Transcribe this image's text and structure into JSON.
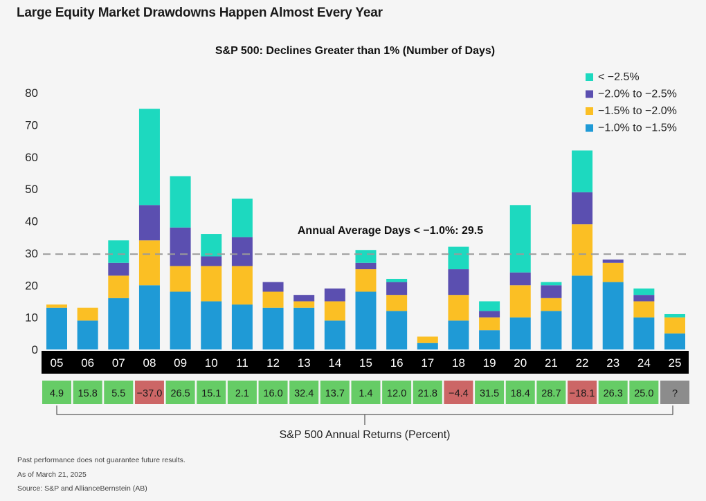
{
  "page": {
    "title": "Large Equity Market Drawdowns Happen Almost Every Year"
  },
  "chart_data": {
    "type": "bar",
    "stacked": true,
    "title": "S&P 500: Declines Greater than 1% (Number of Days)",
    "categories": [
      "05",
      "06",
      "07",
      "08",
      "09",
      "10",
      "11",
      "12",
      "13",
      "14",
      "15",
      "16",
      "17",
      "18",
      "19",
      "20",
      "21",
      "22",
      "23",
      "24",
      "25"
    ],
    "ylim": [
      0,
      80
    ],
    "yticks": [
      0,
      10,
      20,
      30,
      40,
      50,
      60,
      70,
      80
    ],
    "grid": false,
    "legend_position": "top-right",
    "series": [
      {
        "name": "−1.0% to −1.5%",
        "color": "#1f9ad6",
        "values": [
          13,
          9,
          16,
          20,
          18,
          15,
          14,
          13,
          13,
          9,
          18,
          12,
          2,
          9,
          6,
          10,
          12,
          23,
          21,
          10,
          5
        ]
      },
      {
        "name": "−1.5% to −2.0%",
        "color": "#fbbf24",
        "values": [
          1,
          4,
          7,
          14,
          8,
          11,
          12,
          5,
          2,
          6,
          7,
          5,
          2,
          8,
          4,
          10,
          4,
          16,
          6,
          5,
          5
        ]
      },
      {
        "name": "−2.0% to −2.5%",
        "color": "#5b4fb0",
        "values": [
          0,
          0,
          4,
          11,
          12,
          3,
          9,
          3,
          2,
          4,
          2,
          4,
          0,
          8,
          2,
          4,
          4,
          10,
          1,
          2,
          0
        ]
      },
      {
        "name": "< −2.5%",
        "color": "#1dd9bf",
        "values": [
          0,
          0,
          7,
          30,
          16,
          7,
          12,
          0,
          0,
          0,
          4,
          1,
          0,
          7,
          3,
          21,
          1,
          13,
          0,
          2,
          1
        ]
      }
    ],
    "reference_line": {
      "value": 29.5,
      "label": "Annual Average Days < −1.0%: 29.5"
    },
    "annual_returns": {
      "label": "S&P 500 Annual Returns (Percent)",
      "values": [
        "4.9",
        "15.8",
        "5.5",
        "−37.0",
        "26.5",
        "15.1",
        "2.1",
        "16.0",
        "32.4",
        "13.7",
        "1.4",
        "12.0",
        "21.8",
        "−4.4",
        "31.5",
        "18.4",
        "28.7",
        "−18.1",
        "26.3",
        "25.0",
        "?"
      ],
      "positive_color": "#66cc66",
      "negative_color": "#cc6666",
      "unknown_color": "#8c8c8c"
    }
  },
  "footer": {
    "disclaimer": "Past performance does not guarantee future results.",
    "as_of": "As of March 21, 2025",
    "source": "Source: S&P and AllianceBernstein (AB)"
  }
}
